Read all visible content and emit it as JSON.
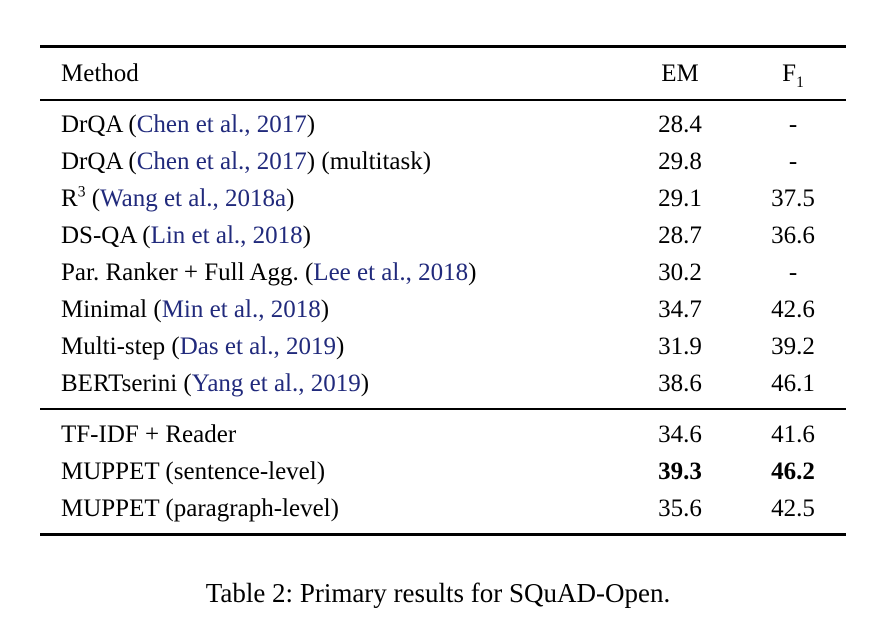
{
  "colors": {
    "citation_link": "#212a7c",
    "text": "#000000",
    "rule": "#000000",
    "background": "#ffffff"
  },
  "table": {
    "header": {
      "method": "Method",
      "em": "EM",
      "f1_base": "F",
      "f1_sub": "1"
    },
    "sections": [
      {
        "rows": [
          {
            "pre": "DrQA (",
            "cite": "Chen et al., 2017",
            "post": ")",
            "em": "28.4",
            "f1": "-"
          },
          {
            "pre": "DrQA (",
            "cite": "Chen et al., 2017",
            "post": ") (multitask)",
            "em": "29.8",
            "f1": "-"
          },
          {
            "pre": "R",
            "sup": "3",
            "pre2": " (",
            "cite": "Wang et al., 2018a",
            "post": ")",
            "em": "29.1",
            "f1": "37.5"
          },
          {
            "pre": "DS-QA (",
            "cite": "Lin et al., 2018",
            "post": ")",
            "em": "28.7",
            "f1": "36.6"
          },
          {
            "pre": "Par. Ranker + Full Agg. (",
            "cite": "Lee et al., 2018",
            "post": ")",
            "em": "30.2",
            "f1": "-"
          },
          {
            "pre": "Minimal (",
            "cite": "Min et al., 2018",
            "post": ")",
            "em": "34.7",
            "f1": "42.6"
          },
          {
            "pre": "Multi-step (",
            "cite": "Das et al., 2019",
            "post": ")",
            "em": "31.9",
            "f1": "39.2"
          },
          {
            "pre": "BERTserini (",
            "cite": "Yang et al., 2019",
            "post": ")",
            "em": "38.6",
            "f1": "46.1"
          }
        ]
      },
      {
        "rows": [
          {
            "pre": "TF-IDF + Reader",
            "em": "34.6",
            "f1": "41.6",
            "bold": false
          },
          {
            "pre": "MUPPET (sentence-level)",
            "em": "39.3",
            "f1": "46.2",
            "bold": true
          },
          {
            "pre": "MUPPET (paragraph-level)",
            "em": "35.6",
            "f1": "42.5",
            "bold": false
          }
        ]
      }
    ]
  },
  "caption": "Table 2: Primary results for SQuAD-Open."
}
